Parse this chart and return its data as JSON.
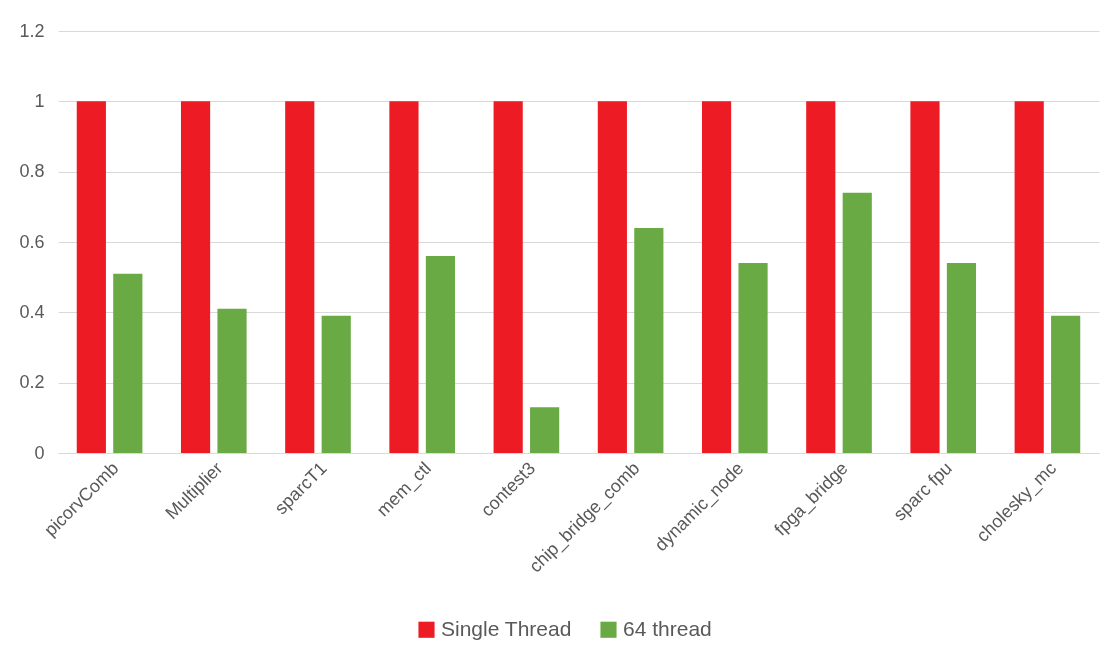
{
  "chart_data": {
    "type": "bar",
    "categories": [
      "picorvComb",
      "Multiplier",
      "sparcT1",
      "mem_ctl",
      "contest3",
      "chip_bridge_comb",
      "dynamic_node",
      "fpga_bridge",
      "sparc fpu",
      "cholesky_mc"
    ],
    "series": [
      {
        "name": "Single Thread",
        "color": "#ed1c24",
        "values": [
          1,
          1,
          1,
          1,
          1,
          1,
          1,
          1,
          1,
          1
        ]
      },
      {
        "name": "64 thread",
        "color": "#6aaa44",
        "values": [
          0.51,
          0.41,
          0.39,
          0.56,
          0.13,
          0.64,
          0.54,
          0.74,
          0.54,
          0.39
        ]
      }
    ],
    "ylim": [
      0,
      1.2
    ],
    "yticks": [
      0,
      0.2,
      0.4,
      0.6,
      0.8,
      1,
      1.2
    ],
    "grid": "y",
    "legend": "bottom"
  }
}
